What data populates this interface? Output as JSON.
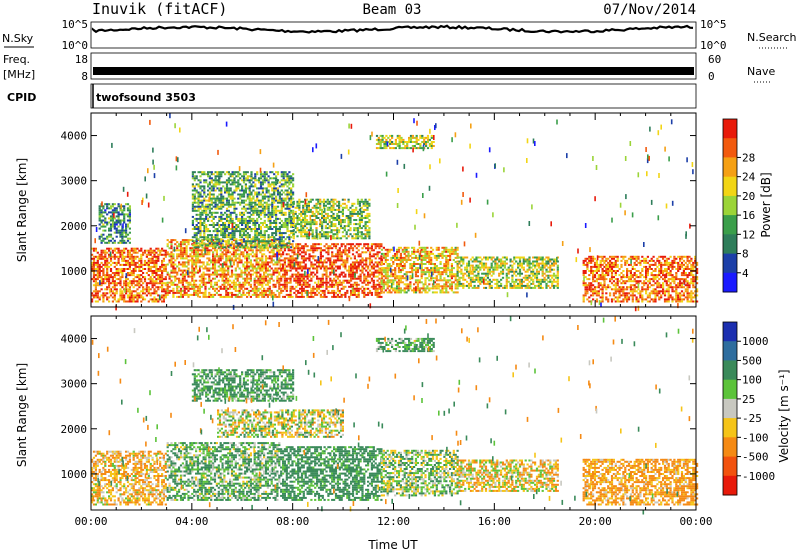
{
  "header": {
    "station": "Inuvik (fitACF)",
    "beam": "Beam 03",
    "date": "07/Nov/2014"
  },
  "top_panels": {
    "nsky_label": "N.Sky",
    "nsky_ticks": [
      "10^5",
      "10^0"
    ],
    "nsearch_label": "N.Search",
    "nsearch_ticks": [
      "10^5",
      "10^0"
    ],
    "freq_label": "Freq.",
    "freq_unit": "[MHz]",
    "freq_ticks": [
      "18",
      "8"
    ],
    "nave_label": "Nave",
    "nave_ticks": [
      "60",
      "0"
    ],
    "cpid_label": "CPID",
    "cpid_value": "twofsound 3503"
  },
  "chart_data": [
    {
      "type": "heatmap",
      "panel": "power",
      "ylabel": "Slant Range [km]",
      "ylim": [
        200,
        4500
      ],
      "yticks": [
        "1000",
        "2000",
        "3000",
        "4000"
      ],
      "colorbar_label": "Power [dB]",
      "colorbar_ticks": [
        "4",
        "8",
        "12",
        "16",
        "20",
        "24",
        "28"
      ],
      "colorbar_range": [
        0,
        30
      ],
      "colorbar_colors": [
        "#1a1aff",
        "#1c3fa8",
        "#2e7d5a",
        "#3a9e4a",
        "#9bd438",
        "#f2d515",
        "#f5a014",
        "#f25a0e",
        "#e81a0a"
      ],
      "regions": [
        {
          "t0": 0.0,
          "t1": 3.0,
          "r0": 300,
          "r1": 1500,
          "level": 24
        },
        {
          "t0": 3.0,
          "t1": 7.5,
          "r0": 400,
          "r1": 1700,
          "level": 22
        },
        {
          "t0": 7.5,
          "t1": 11.5,
          "r0": 400,
          "r1": 1600,
          "level": 26
        },
        {
          "t0": 11.5,
          "t1": 14.5,
          "r0": 500,
          "r1": 1500,
          "level": 20
        },
        {
          "t0": 14.5,
          "t1": 18.5,
          "r0": 600,
          "r1": 1300,
          "level": 16
        },
        {
          "t0": 19.5,
          "t1": 24.0,
          "r0": 300,
          "r1": 1300,
          "level": 24
        },
        {
          "t0": 4.0,
          "t1": 8.0,
          "r0": 1500,
          "r1": 3200,
          "level": 12
        },
        {
          "t0": 8.0,
          "t1": 11.0,
          "r0": 1700,
          "r1": 2600,
          "level": 14
        },
        {
          "t0": 11.3,
          "t1": 13.6,
          "r0": 3700,
          "r1": 4000,
          "level": 16
        },
        {
          "t0": 0.3,
          "t1": 1.5,
          "r0": 1600,
          "r1": 2500,
          "level": 10
        }
      ]
    },
    {
      "type": "heatmap",
      "panel": "velocity",
      "ylabel": "Slant Range [km]",
      "xlabel": "Time UT",
      "ylim": [
        200,
        4500
      ],
      "yticks": [
        "1000",
        "2000",
        "3000",
        "4000"
      ],
      "xticks": [
        "00:00",
        "04:00",
        "08:00",
        "12:00",
        "16:00",
        "20:00",
        "00:00"
      ],
      "xlim": [
        0,
        24
      ],
      "colorbar_label": "Velocity [m s⁻¹]",
      "colorbar_ticks": [
        "1000",
        "500",
        "100",
        "25",
        "-25",
        "-100",
        "-500",
        "-1000"
      ],
      "colorbar_colors": [
        "#1c2fb0",
        "#2e6d9e",
        "#3a8a5a",
        "#5cc33a",
        "#c8c8c0",
        "#f5c418",
        "#f58a14",
        "#f2520e",
        "#e81a0a"
      ],
      "regions": [
        {
          "t0": 0.0,
          "t1": 3.0,
          "r0": 300,
          "r1": 1500,
          "level": -100
        },
        {
          "t0": 3.0,
          "t1": 7.5,
          "r0": 400,
          "r1": 1700,
          "level": 100
        },
        {
          "t0": 7.5,
          "t1": 11.5,
          "r0": 400,
          "r1": 1600,
          "level": 200
        },
        {
          "t0": 11.5,
          "t1": 14.5,
          "r0": 500,
          "r1": 1500,
          "level": 50
        },
        {
          "t0": 14.5,
          "t1": 18.5,
          "r0": 600,
          "r1": 1300,
          "level": -50
        },
        {
          "t0": 19.5,
          "t1": 24.0,
          "r0": 300,
          "r1": 1300,
          "level": -150
        },
        {
          "t0": 5.0,
          "t1": 10.0,
          "r0": 1800,
          "r1": 2400,
          "level": 0
        },
        {
          "t0": 4.0,
          "t1": 8.0,
          "r0": 2600,
          "r1": 3300,
          "level": 150
        },
        {
          "t0": 11.3,
          "t1": 13.6,
          "r0": 3700,
          "r1": 4000,
          "level": 120
        }
      ]
    }
  ]
}
